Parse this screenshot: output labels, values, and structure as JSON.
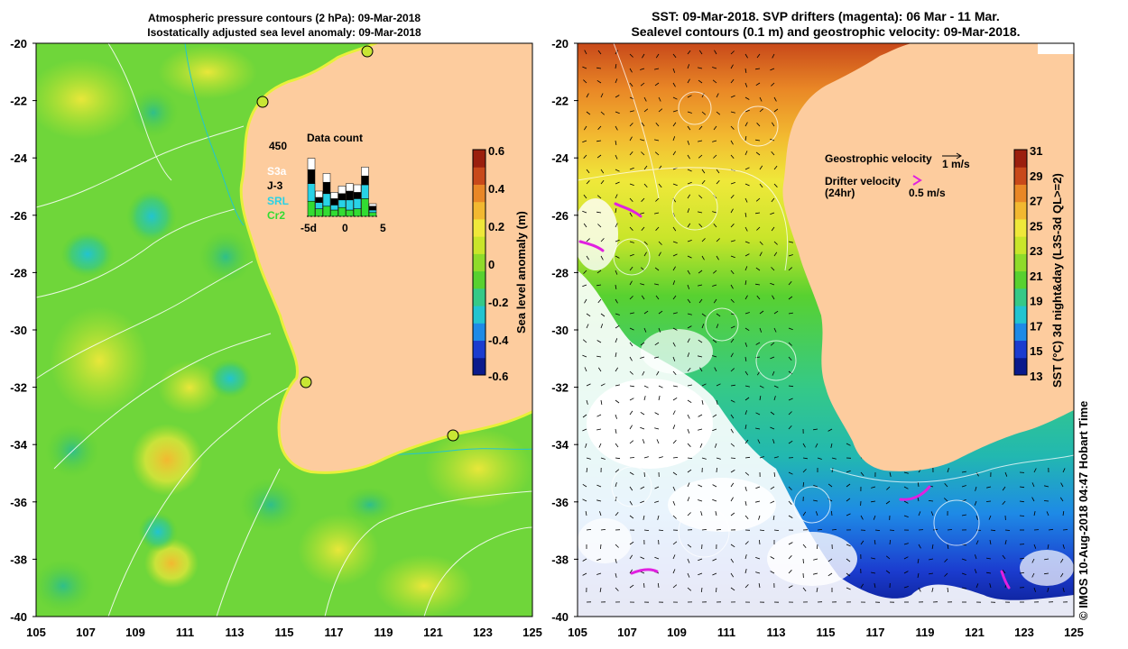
{
  "left_panel": {
    "title_line1": "Atmospheric pressure contours (2 hPa): 09-Mar-2018",
    "title_line2": "Isostatically adjusted sea level anomaly: 09-Mar-2018",
    "colorbar": {
      "label": "Sea level anomaly (m)",
      "ticks": [
        "0.6",
        "0.4",
        "0.2",
        "0",
        "-0.2",
        "-0.4",
        "-0.6"
      ],
      "colors": [
        "#0a1a8c",
        "#1b3ccf",
        "#1e8ae6",
        "#22c4d0",
        "#35c987",
        "#58d130",
        "#8fdb2a",
        "#c9e52a",
        "#efe83a",
        "#f2b830",
        "#e98726",
        "#c8491a",
        "#9b1f0e"
      ]
    },
    "inset": {
      "title": "Data count",
      "max_label": "450",
      "x_ticks": [
        "-5d",
        "0",
        "5"
      ],
      "legend": [
        {
          "name": "S3a",
          "color": "#ffffff"
        },
        {
          "name": "J-3",
          "color": "#000000"
        },
        {
          "name": "SRL",
          "color": "#28d2e6"
        },
        {
          "name": "Cr2",
          "color": "#32dc32"
        }
      ]
    }
  },
  "right_panel": {
    "title_line1": "SST: 09-Mar-2018. SVP drifters (magenta): 06 Mar - 11 Mar.",
    "title_line2": "Sealevel contours (0.1 m) and geostrophic velocity: 09-Mar-2018.",
    "legend": {
      "geo_label": "Geostrophic velocity",
      "geo_scale": "1 m/s",
      "drifter_label": "Drifter velocity",
      "drifter_sub": "(24hr)",
      "drifter_scale": "0.5 m/s"
    },
    "colorbar": {
      "label": "SST (°C) 3d night&day (L3S-3d QL>=2)",
      "ticks": [
        "31",
        "29",
        "27",
        "25",
        "23",
        "21",
        "19",
        "17",
        "15",
        "13"
      ],
      "colors": [
        "#0a1a8c",
        "#1b3ccf",
        "#1e8ae6",
        "#22c4d0",
        "#35c987",
        "#58d130",
        "#8fdb2a",
        "#c9e52a",
        "#efe83a",
        "#f2b830",
        "#e98726",
        "#c8491a",
        "#9b1f0e"
      ]
    }
  },
  "axes": {
    "lat_ticks": [
      "-20",
      "-22",
      "-24",
      "-26",
      "-28",
      "-30",
      "-32",
      "-34",
      "-36",
      "-38",
      "-40"
    ],
    "lon_ticks": [
      "105",
      "107",
      "109",
      "111",
      "113",
      "115",
      "117",
      "119",
      "121",
      "123",
      "125"
    ]
  },
  "credit": "© IMOS 10-Aug-2018 04:47 Hobart Time",
  "colors": {
    "land": "#fdcc9e",
    "drifter": "#e020e0",
    "tide_gauge_marker": "#c8e634"
  }
}
